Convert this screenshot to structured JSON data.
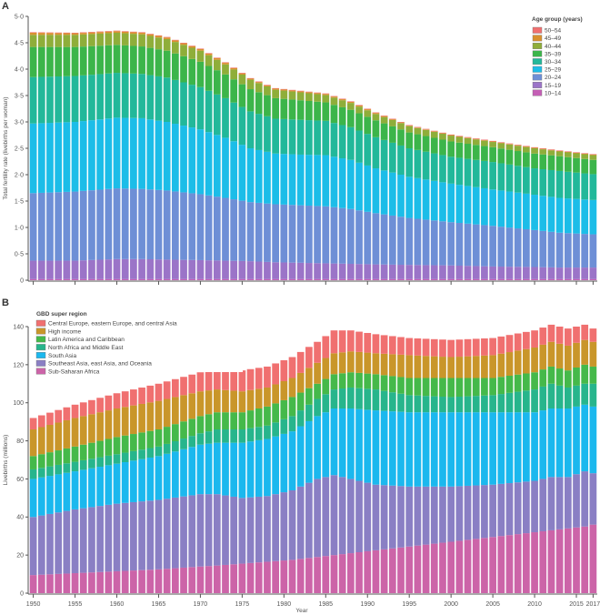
{
  "chart_data": [
    {
      "panel": "A",
      "type": "bar",
      "stacked": true,
      "title": "",
      "xlabel": "",
      "ylabel": "Total fertility rate (livebirths per woman)",
      "ylim": [
        0,
        5.0
      ],
      "yticks": [
        "0",
        "0·5",
        "1·0",
        "1·5",
        "2·0",
        "2·5",
        "3·0",
        "3·5",
        "4·0",
        "4·5",
        "5·0"
      ],
      "ytick_values": [
        0,
        0.5,
        1.0,
        1.5,
        2.0,
        2.5,
        3.0,
        3.5,
        4.0,
        4.5,
        5.0
      ],
      "x_start": 1950,
      "x_end": 2017,
      "xtick_years": [
        1950,
        1955,
        1960,
        1965,
        1970,
        1975,
        1980,
        1985,
        1990,
        1995,
        2000,
        2005,
        2010,
        2015,
        2017
      ],
      "legend_title": "Age group (years)",
      "legend_position": "top-right",
      "series_order_bottom_to_top": [
        "10–14",
        "15–19",
        "20–24",
        "25–29",
        "30–34",
        "35–39",
        "40–44",
        "45–49",
        "50–54"
      ],
      "legend": [
        {
          "name": "50–54",
          "color": "#f07070"
        },
        {
          "name": "45–49",
          "color": "#d9912e"
        },
        {
          "name": "40–44",
          "color": "#8fae3a"
        },
        {
          "name": "35–39",
          "color": "#3cb54a"
        },
        {
          "name": "30–34",
          "color": "#22b89a"
        },
        {
          "name": "25–29",
          "color": "#1cbde8"
        },
        {
          "name": "20–24",
          "color": "#6e8fd6"
        },
        {
          "name": "15–19",
          "color": "#9b74c8"
        },
        {
          "name": "10–14",
          "color": "#c45fb5"
        }
      ],
      "cumulative_keyframes_note": "Cumulative top of each age-group band (livebirths per woman), read at keyframe years; intermediate years interpolated",
      "keyframes": {
        "years": [
          1950,
          1955,
          1960,
          1963,
          1966,
          1970,
          1973,
          1976,
          1979,
          1982,
          1985,
          1988,
          1991,
          1995,
          2000,
          2005,
          2010,
          2013,
          2017
        ],
        "10–14": [
          0.02,
          0.02,
          0.02,
          0.02,
          0.02,
          0.02,
          0.02,
          0.02,
          0.02,
          0.02,
          0.02,
          0.02,
          0.02,
          0.02,
          0.02,
          0.02,
          0.02,
          0.02,
          0.02
        ],
        "15–19": [
          0.37,
          0.37,
          0.4,
          0.4,
          0.39,
          0.38,
          0.37,
          0.36,
          0.34,
          0.33,
          0.32,
          0.31,
          0.3,
          0.29,
          0.28,
          0.26,
          0.25,
          0.24,
          0.24
        ],
        "20–24": [
          1.65,
          1.68,
          1.74,
          1.73,
          1.7,
          1.63,
          1.56,
          1.48,
          1.44,
          1.42,
          1.4,
          1.35,
          1.27,
          1.18,
          1.1,
          1.03,
          0.95,
          0.9,
          0.87
        ],
        "25–29": [
          2.97,
          3.0,
          3.08,
          3.07,
          3.0,
          2.86,
          2.7,
          2.5,
          2.4,
          2.38,
          2.37,
          2.28,
          2.12,
          1.96,
          1.83,
          1.72,
          1.62,
          1.56,
          1.52
        ],
        "30–34": [
          3.85,
          3.87,
          3.93,
          3.91,
          3.84,
          3.66,
          3.45,
          3.2,
          3.06,
          3.04,
          3.02,
          2.9,
          2.71,
          2.5,
          2.34,
          2.24,
          2.12,
          2.07,
          2.01
        ],
        "35–39": [
          4.42,
          4.42,
          4.46,
          4.43,
          4.35,
          4.14,
          3.9,
          3.62,
          3.45,
          3.41,
          3.37,
          3.23,
          3.03,
          2.8,
          2.63,
          2.52,
          2.4,
          2.35,
          2.28
        ],
        "40–44": [
          4.65,
          4.65,
          4.69,
          4.66,
          4.57,
          4.35,
          4.09,
          3.8,
          3.61,
          3.56,
          3.51,
          3.36,
          3.15,
          2.92,
          2.74,
          2.62,
          2.5,
          2.44,
          2.37
        ],
        "45–49": [
          4.69,
          4.68,
          4.72,
          4.69,
          4.6,
          4.38,
          4.12,
          3.82,
          3.63,
          3.58,
          3.53,
          3.38,
          3.17,
          2.93,
          2.75,
          2.63,
          2.51,
          2.45,
          2.38
        ],
        "50–54": [
          4.7,
          4.69,
          4.73,
          4.7,
          4.61,
          4.39,
          4.13,
          3.83,
          3.64,
          3.59,
          3.54,
          3.39,
          3.18,
          2.94,
          2.76,
          2.64,
          2.52,
          2.46,
          2.39
        ]
      }
    },
    {
      "panel": "B",
      "type": "bar",
      "stacked": true,
      "title": "",
      "xlabel": "Year",
      "ylabel": "Livebirths (millions)",
      "ylim": [
        0,
        140
      ],
      "yticks": [
        "0",
        "20",
        "40",
        "60",
        "80",
        "100",
        "120",
        "140"
      ],
      "ytick_values": [
        0,
        20,
        40,
        60,
        80,
        100,
        120,
        140
      ],
      "x_start": 1950,
      "x_end": 2017,
      "xtick_years": [
        1950,
        1955,
        1960,
        1965,
        1970,
        1975,
        1980,
        1985,
        1990,
        1995,
        2000,
        2005,
        2010,
        2015,
        2017
      ],
      "xtick_labels": [
        "1950",
        "1955",
        "1960",
        "1965",
        "1970",
        "1975",
        "1980",
        "1985",
        "1990",
        "1995",
        "2000",
        "2005",
        "2010",
        "2015",
        "2017"
      ],
      "legend_title": "GBD super region",
      "legend_position": "top-left",
      "series_order_bottom_to_top": [
        "Sub-Saharan Africa",
        "Southeast Asia, east Asia, and Oceania",
        "South Asia",
        "North Africa and Middle East",
        "Latin America and Caribbean",
        "High income",
        "Central Europe, eastern Europe, and central Asia"
      ],
      "legend": [
        {
          "name": "Central Europe, eastern Europe, and central Asia",
          "color": "#f07070"
        },
        {
          "name": "High income",
          "color": "#c9962a"
        },
        {
          "name": "Latin America and Caribbean",
          "color": "#45b94a"
        },
        {
          "name": "North Africa and Middle East",
          "color": "#27b58c"
        },
        {
          "name": "South Asia",
          "color": "#1bb8ee"
        },
        {
          "name": "Southeast Asia, east Asia, and Oceania",
          "color": "#8a7fc4"
        },
        {
          "name": "Sub-Saharan Africa",
          "color": "#cc64a8"
        }
      ],
      "cumulative_keyframes_note": "Cumulative top of each region band (millions of livebirths), read at keyframe years; intermediate years interpolated",
      "keyframes": {
        "years": [
          1950,
          1955,
          1960,
          1965,
          1970,
          1972,
          1975,
          1978,
          1981,
          1984,
          1986,
          1988,
          1991,
          1995,
          2000,
          2005,
          2010,
          2012,
          2014,
          2016,
          2017
        ],
        "Sub-Saharan Africa": [
          9.5,
          10.5,
          11.5,
          12.5,
          14,
          14.5,
          15.5,
          16.5,
          17.5,
          19,
          20,
          21,
          22.5,
          24.5,
          27,
          29.5,
          32,
          33,
          34,
          35,
          36
        ],
        "Southeast Asia, east Asia, and Oceania": [
          40,
          44,
          47,
          49,
          52,
          52,
          50,
          51,
          54,
          60,
          62,
          60,
          57,
          56,
          56,
          57,
          59,
          61,
          61,
          64,
          63
        ],
        "South Asia": [
          60,
          64,
          68,
          72,
          78,
          79,
          79,
          81,
          85,
          93,
          97,
          97,
          96,
          95,
          95,
          95,
          95,
          97,
          97,
          99,
          98
        ],
        "North Africa and Middle East": [
          65,
          69,
          73,
          77,
          84,
          86,
          86,
          88,
          93,
          102,
          107,
          108,
          107,
          104,
          103,
          104,
          107,
          110,
          108,
          110,
          110
        ],
        "Latin America and Caribbean": [
          72,
          77,
          82,
          86,
          93,
          95,
          95,
          98,
          103,
          110,
          115,
          116,
          115,
          113,
          113,
          113,
          116,
          119,
          117,
          120,
          119
        ],
        "High income": [
          86,
          92,
          97,
          101,
          106,
          107,
          106,
          108,
          113,
          121,
          126,
          127,
          126,
          125,
          124,
          125,
          129,
          132,
          130,
          133,
          132
        ],
        "Central Europe, eastern Europe, and central Asia": [
          92,
          99,
          105,
          110,
          116,
          118,
          117,
          119,
          124,
          132,
          138,
          138,
          136,
          134,
          133,
          134,
          138,
          141,
          139,
          141,
          139
        ]
      }
    }
  ]
}
